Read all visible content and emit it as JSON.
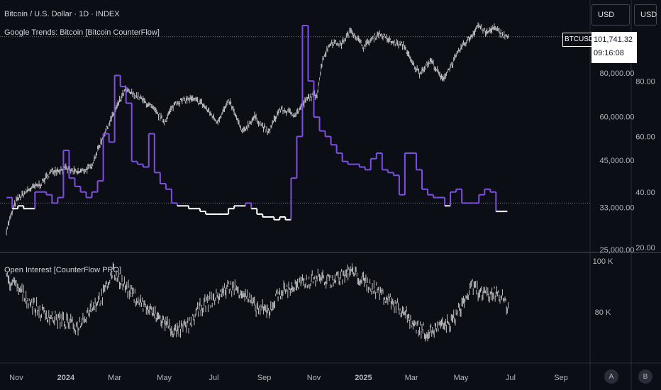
{
  "header": {
    "title": "Bitcoin / U.S. Dollar · 1D · INDEX",
    "subtitle": "Google Trends: Bitcoin [Bitcoin CounterFlow]"
  },
  "toolbar": {
    "currency_left": "USD",
    "currency_right": "USD"
  },
  "price_label": {
    "symbol": "BTCUSD",
    "price": "101,741.32",
    "countdown": "09:16:08"
  },
  "lower_pane": {
    "title": "Open Interest [CounterFlow PRO]"
  },
  "bottom_buttons": {
    "auto": "A",
    "log": "B"
  },
  "colors": {
    "background": "#0c0e15",
    "price_line": "#e0e0e0",
    "trends_line": "#7e4fe0",
    "trends_low": "#ffffff",
    "grid_dotted": "#787b86"
  },
  "chart_data": [
    {
      "type": "line",
      "name": "main-pane",
      "series": [
        {
          "name": "Bitcoin / U.S. Dollar",
          "axis": "left-price",
          "x": [
            "2023-10-20",
            "2023-11-01",
            "2023-11-15",
            "2023-12-01",
            "2023-12-15",
            "2024-01-01",
            "2024-01-15",
            "2024-02-01",
            "2024-02-15",
            "2024-03-01",
            "2024-03-14",
            "2024-04-01",
            "2024-04-15",
            "2024-05-01",
            "2024-05-15",
            "2024-06-01",
            "2024-06-15",
            "2024-07-05",
            "2024-07-20",
            "2024-08-05",
            "2024-08-20",
            "2024-09-06",
            "2024-09-20",
            "2024-10-10",
            "2024-10-25",
            "2024-11-05",
            "2024-11-12",
            "2024-11-22",
            "2024-12-05",
            "2024-12-17",
            "2025-01-01",
            "2025-01-20",
            "2025-02-05",
            "2025-02-20",
            "2025-03-01",
            "2025-03-11",
            "2025-03-25",
            "2025-04-08",
            "2025-04-20",
            "2025-05-01",
            "2025-05-15",
            "2025-05-22",
            "2025-06-01",
            "2025-06-10",
            "2025-06-20",
            "2025-06-28"
          ],
          "y": [
            28500,
            34500,
            37000,
            38500,
            42000,
            42500,
            41500,
            43000,
            52000,
            62000,
            71500,
            68000,
            64000,
            58000,
            66000,
            67500,
            66000,
            58000,
            66500,
            54000,
            60000,
            54000,
            63000,
            61000,
            68000,
            69500,
            88000,
            98000,
            97000,
            106000,
            95000,
            104000,
            98000,
            96000,
            86000,
            80000,
            87000,
            76500,
            85000,
            94500,
            103000,
            110000,
            104000,
            108000,
            103500,
            101741
          ]
        },
        {
          "name": "Google Trends: Bitcoin",
          "axis": "right-trends",
          "x": [
            "2023-10-20",
            "2023-10-27",
            "2023-11-03",
            "2023-11-10",
            "2023-11-17",
            "2023-11-24",
            "2023-12-01",
            "2023-12-08",
            "2023-12-15",
            "2023-12-22",
            "2023-12-29",
            "2024-01-05",
            "2024-01-12",
            "2024-01-19",
            "2024-01-26",
            "2024-02-02",
            "2024-02-09",
            "2024-02-16",
            "2024-02-23",
            "2024-03-01",
            "2024-03-08",
            "2024-03-15",
            "2024-03-22",
            "2024-03-29",
            "2024-04-05",
            "2024-04-12",
            "2024-04-19",
            "2024-04-26",
            "2024-05-03",
            "2024-05-10",
            "2024-05-17",
            "2024-05-24",
            "2024-05-31",
            "2024-06-07",
            "2024-06-14",
            "2024-06-21",
            "2024-06-28",
            "2024-07-05",
            "2024-07-12",
            "2024-07-19",
            "2024-07-26",
            "2024-08-02",
            "2024-08-09",
            "2024-08-16",
            "2024-08-23",
            "2024-08-30",
            "2024-09-06",
            "2024-09-13",
            "2024-09-20",
            "2024-09-27",
            "2024-10-04",
            "2024-10-11",
            "2024-10-18",
            "2024-10-25",
            "2024-11-01",
            "2024-11-08",
            "2024-11-15",
            "2024-11-22",
            "2024-11-29",
            "2024-12-06",
            "2024-12-13",
            "2024-12-20",
            "2024-12-27",
            "2025-01-03",
            "2025-01-10",
            "2025-01-17",
            "2025-01-24",
            "2025-01-31",
            "2025-02-07",
            "2025-02-14",
            "2025-02-21",
            "2025-02-28",
            "2025-03-07",
            "2025-03-14",
            "2025-03-21",
            "2025-03-28",
            "2025-04-04",
            "2025-04-11",
            "2025-04-18",
            "2025-04-25",
            "2025-05-02",
            "2025-05-09",
            "2025-05-16",
            "2025-05-23",
            "2025-05-30",
            "2025-06-06",
            "2025-06-13",
            "2025-06-20",
            "2025-06-27"
          ],
          "y": [
            38,
            34,
            35,
            34,
            34,
            40,
            40,
            39,
            36,
            38,
            55,
            45,
            42,
            40,
            38,
            40,
            44,
            61,
            58,
            82,
            78,
            72,
            51,
            50,
            49,
            61,
            47,
            43,
            41,
            36,
            35,
            35,
            34,
            34,
            33,
            32,
            32,
            32,
            32,
            34,
            35,
            35,
            36,
            34,
            32,
            31,
            31,
            30,
            31,
            30,
            45,
            60,
            100,
            80,
            67,
            62,
            60,
            57,
            54,
            51,
            50,
            50,
            49,
            48,
            52,
            54,
            48,
            47,
            46,
            39,
            54,
            54,
            48,
            41,
            39,
            38,
            38,
            35,
            40,
            41,
            36,
            36,
            36,
            39,
            41,
            40,
            33,
            33,
            33
          ],
          "highlight_below": 36
        }
      ],
      "left_axis_ticks": [
        25000,
        33000,
        45000,
        60000,
        80000
      ],
      "right_axis_ticks": [
        20,
        40,
        60,
        80
      ],
      "x_ticks": [
        "Nov",
        "2024",
        "Mar",
        "May",
        "Jul",
        "Sep",
        "Nov",
        "2025",
        "Mar",
        "May",
        "Jul",
        "Sep"
      ],
      "reference_line": 101741
    },
    {
      "type": "line",
      "name": "Open Interest",
      "x": [
        "2023-10-20",
        "2023-11-01",
        "2023-11-15",
        "2023-12-01",
        "2023-12-15",
        "2024-01-01",
        "2024-01-15",
        "2024-02-01",
        "2024-02-15",
        "2024-02-28",
        "2024-03-14",
        "2024-04-01",
        "2024-04-15",
        "2024-05-01",
        "2024-05-15",
        "2024-06-01",
        "2024-06-15",
        "2024-07-05",
        "2024-07-20",
        "2024-08-05",
        "2024-08-20",
        "2024-09-06",
        "2024-09-20",
        "2024-10-10",
        "2024-10-25",
        "2024-11-05",
        "2024-11-20",
        "2024-12-05",
        "2024-12-17",
        "2025-01-01",
        "2025-01-20",
        "2025-02-05",
        "2025-02-20",
        "2025-03-05",
        "2025-03-20",
        "2025-04-05",
        "2025-04-20",
        "2025-05-01",
        "2025-05-15",
        "2025-06-01",
        "2025-06-15",
        "2025-06-28"
      ],
      "y": [
        93,
        90,
        85,
        80,
        78,
        76,
        74,
        82,
        86,
        96,
        90,
        84,
        80,
        76,
        72,
        75,
        82,
        86,
        90,
        88,
        82,
        80,
        88,
        90,
        92,
        94,
        92,
        94,
        96,
        92,
        88,
        84,
        80,
        75,
        72,
        74,
        76,
        82,
        90,
        86,
        88,
        82
      ],
      "y_ticks": [
        80,
        100
      ],
      "y_tick_labels": [
        "80 K",
        "100 K"
      ]
    }
  ]
}
